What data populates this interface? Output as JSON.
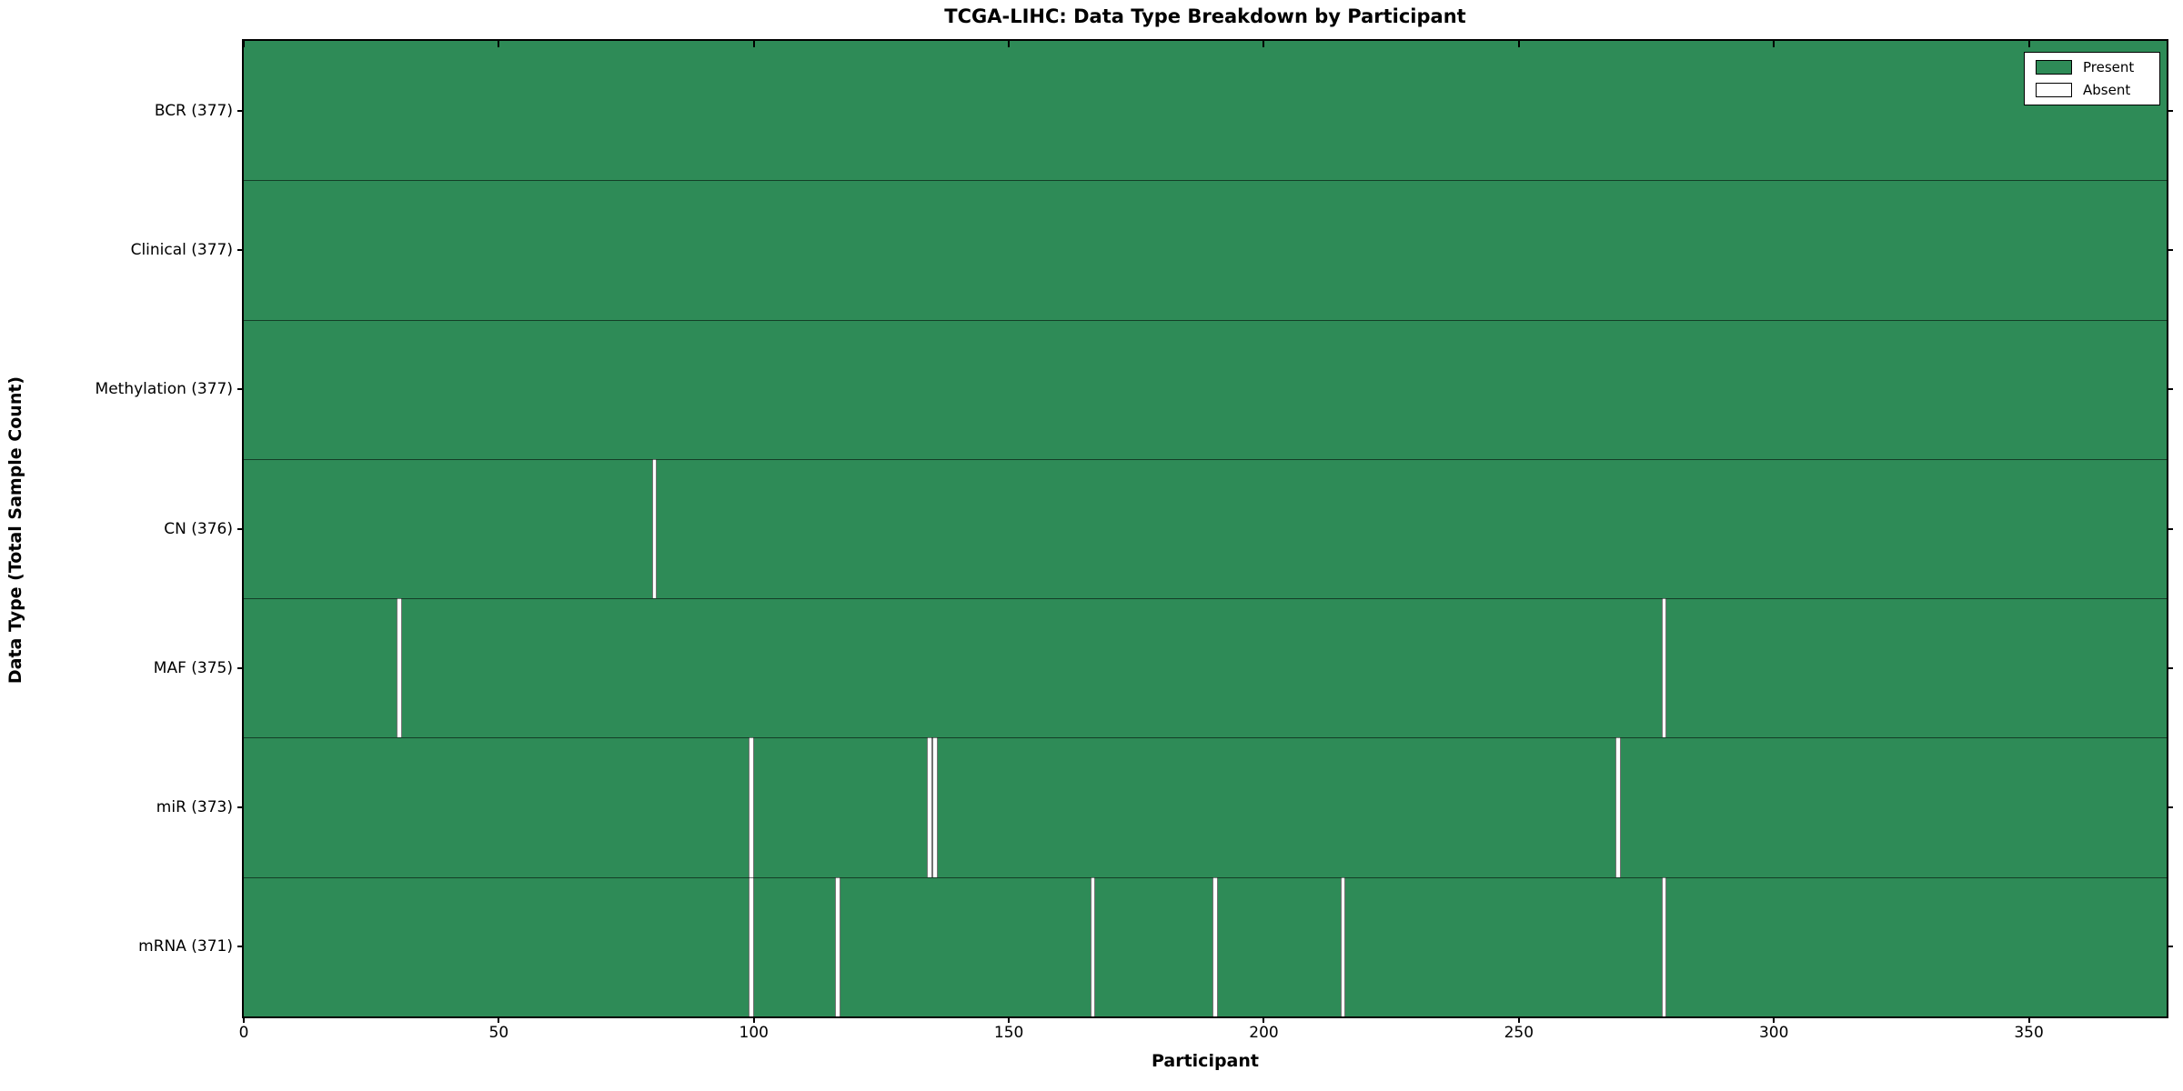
{
  "chart_data": {
    "type": "heatmap",
    "title": "TCGA-LIHC: Data Type Breakdown by Participant",
    "xlabel": "Participant",
    "ylabel": "Data Type (Total Sample Count)",
    "x_max": 377,
    "x_ticks": [
      0,
      50,
      100,
      150,
      200,
      250,
      300,
      350
    ],
    "legend_position": "upper right",
    "grid": false,
    "legend": [
      {
        "label": "Present",
        "color": "#2e8b57"
      },
      {
        "label": "Absent",
        "color": "#ffffff"
      }
    ],
    "colors": {
      "present": "#2e8b57",
      "bar_edge": "rgba(0,0,0,0.38)",
      "absent": "#ffffff"
    },
    "rows": [
      {
        "label": "BCR (377)",
        "data_type": "BCR",
        "total": 377,
        "absent_participants": []
      },
      {
        "label": "Clinical (377)",
        "data_type": "Clinical",
        "total": 377,
        "absent_participants": []
      },
      {
        "label": "Methylation (377)",
        "data_type": "Methylation",
        "total": 377,
        "absent_participants": []
      },
      {
        "label": "CN (376)",
        "data_type": "CN",
        "total": 376,
        "absent_participants": [
          80
        ]
      },
      {
        "label": "MAF (375)",
        "data_type": "MAF",
        "total": 375,
        "absent_participants": [
          30,
          278
        ]
      },
      {
        "label": "miR (373)",
        "data_type": "miR",
        "total": 373,
        "absent_participants": [
          99,
          134,
          135,
          269
        ]
      },
      {
        "label": "mRNA (371)",
        "data_type": "mRNA",
        "total": 371,
        "absent_participants": [
          99,
          116,
          166,
          190,
          215,
          278
        ]
      }
    ]
  }
}
